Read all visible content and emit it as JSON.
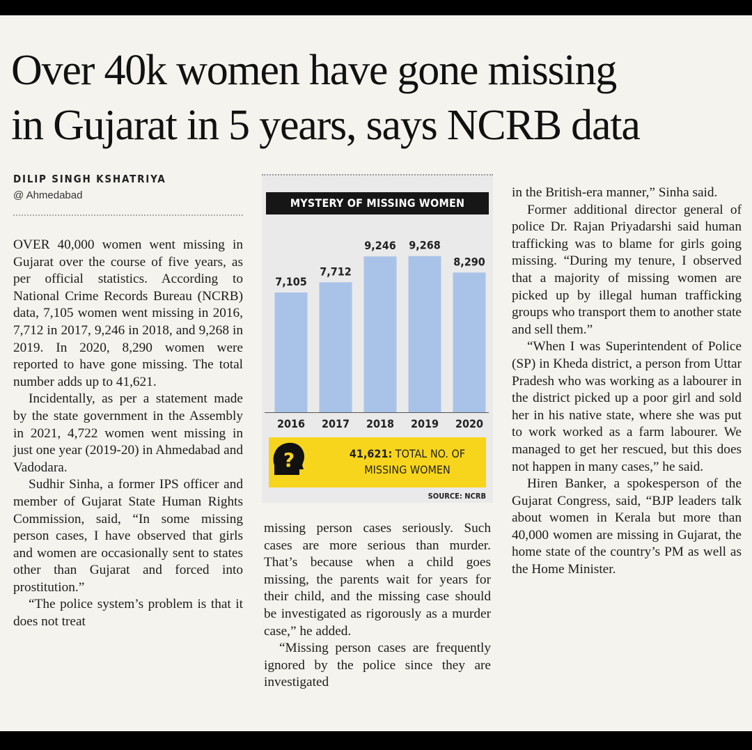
{
  "headline": {
    "line1": "Over 40k women have gone missing",
    "line2": "in Gujarat in 5 years, says NCRB data"
  },
  "byline": "DILIP SINGH KSHATRIYA",
  "dateline": "@ Ahmedabad",
  "chart": {
    "title": "MYSTERY OF MISSING WOMEN",
    "total_number": "41,621:",
    "total_label": "TOTAL NO. OF MISSING WOMEN",
    "source": "SOURCE: NCRB",
    "bar_color": "#a9c3e8",
    "callout_color": "#f7d51c",
    "icon": "question-head-icon"
  },
  "chart_data": {
    "type": "bar",
    "title": "MYSTERY OF MISSING WOMEN",
    "categories": [
      "2016",
      "2017",
      "2018",
      "2019",
      "2020"
    ],
    "values": [
      7105,
      7712,
      9246,
      9268,
      8290
    ],
    "value_labels": [
      "7,105",
      "7,712",
      "9,246",
      "9,268",
      "8,290"
    ],
    "xlabel": "",
    "ylabel": "",
    "ylim": [
      0,
      10000
    ],
    "grid": false
  },
  "columns": {
    "col1": [
      "OVER 40,000 women went missing in Gujarat over the course of five years, as per official statistics. According to National Crime Records Bureau (NCRB) data, 7,105 women went missing in 2016, 7,712 in 2017, 9,246 in 2018, and 9,268 in 2019. In 2020, 8,290 women were reported to have gone missing. The total number adds up to 41,621.",
      "Incidentally, as per a statement made by the state government in the Assembly in 2021, 4,722 women went missing in just one year (2019-20) in Ahmedabad and Vadodara.",
      "Sudhir Sinha, a former IPS officer and member of Gujarat State Human Rights Commission, said, “In some missing person cases, I have observed that girls and women are occasionally sent to states other than Gujarat and forced into prostitution.”",
      "“The police system’s problem is that it does not treat"
    ],
    "col2": [
      "missing person cases seriously. Such cases are more serious than murder. That’s because when a child goes missing, the parents wait for years for their child, and the missing case should be investigated as rigorously as a murder case,” he added.",
      "“Missing person cases are frequently ignored by the police since they are investigated"
    ],
    "col3": [
      "in the British-era manner,” Sinha said.",
      "Former additional director general of police Dr. Rajan Priyadarshi said human trafficking was to blame for girls going missing. “During my tenure, I observed that a majority of missing women are picked up by illegal human trafficking groups who transport them to another state and sell them.”",
      "“When I was Superintendent of Police (SP) in Kheda district, a person from Uttar Pradesh who was working as a labourer in the district picked up a poor girl and sold her in his native state, where she was put to work worked as a farm labourer. We managed to get her rescued, but this does not happen in many cases,” he said.",
      "Hiren Banker, a spokesperson of the Gujarat Congress, said, “BJP leaders talk about women in Kerala but more than 40,000 women are missing in Gujarat, the home state of the country’s PM as well as the Home Minister."
    ]
  }
}
